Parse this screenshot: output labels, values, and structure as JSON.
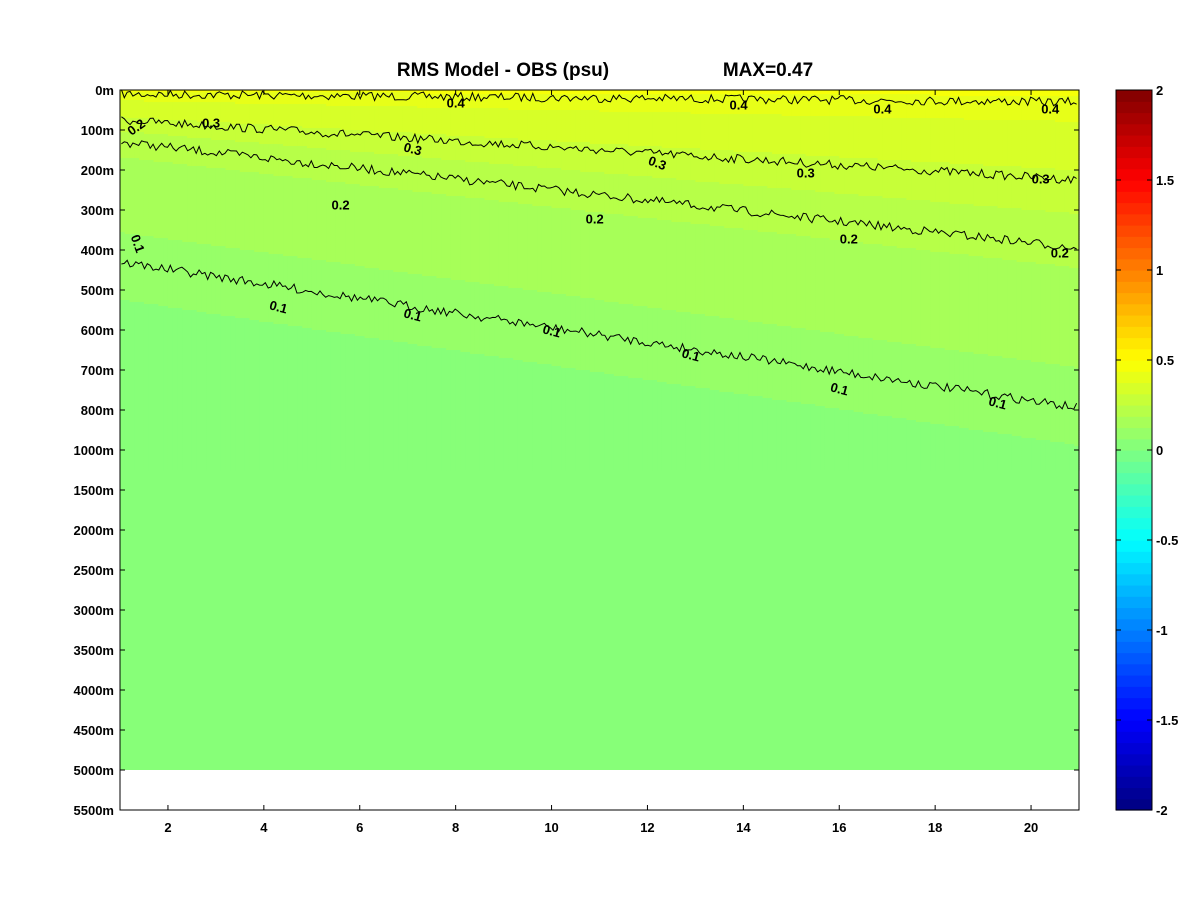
{
  "chart_data": {
    "type": "heatmap",
    "title": "RMS Model - OBS (psu)",
    "max_label": "MAX=0.47",
    "x_range": [
      1,
      21
    ],
    "x_ticks": [
      2,
      4,
      6,
      8,
      10,
      12,
      14,
      16,
      18,
      20
    ],
    "x_tick_labels": [
      "2",
      "4",
      "6",
      "8",
      "10",
      "12",
      "14",
      "16",
      "18",
      "20"
    ],
    "y_tick_labels": [
      "0m",
      "100m",
      "200m",
      "300m",
      "400m",
      "500m",
      "600m",
      "700m",
      "800m",
      "1000m",
      "1500m",
      "2000m",
      "2500m",
      "3000m",
      "3500m",
      "4000m",
      "4500m",
      "5000m",
      "5500m"
    ],
    "data_bottom_label": "5000m",
    "colorbar": {
      "range": [
        -2,
        2
      ],
      "ticks": [
        2,
        1.5,
        1,
        0.5,
        0,
        -0.5,
        -1,
        -1.5,
        -2
      ],
      "tick_labels": [
        "2",
        "1.5",
        "1",
        "0.5",
        "0",
        "-0.5",
        "-1",
        "-1.5",
        "-2"
      ],
      "colormap": "jet"
    },
    "contour_levels": [
      {
        "level": 0.4,
        "label": "0.4",
        "y_start": 0.1,
        "y_end": 0.3
      },
      {
        "level": 0.3,
        "label": "0.3",
        "y_start": 0.75,
        "y_end": 2.25
      },
      {
        "level": 0.2,
        "label": "0.2",
        "y_start": 1.3,
        "y_end": 3.95
      },
      {
        "level": 0.1,
        "label": "0.1",
        "y_start": 4.3,
        "y_end": 7.95
      }
    ],
    "contour_labels": [
      {
        "text": "0.4",
        "x": 8.0,
        "y": 0.35,
        "rot": 0
      },
      {
        "text": "0.4",
        "x": 13.9,
        "y": 0.4,
        "rot": 0
      },
      {
        "text": "0.4",
        "x": 16.9,
        "y": 0.5,
        "rot": 0
      },
      {
        "text": "0.4",
        "x": 20.4,
        "y": 0.5,
        "rot": 0
      },
      {
        "text": "0.3",
        "x": 2.9,
        "y": 0.85,
        "rot": 0
      },
      {
        "text": "0.3",
        "x": 7.1,
        "y": 1.5,
        "rot": 15
      },
      {
        "text": "0.3",
        "x": 12.2,
        "y": 1.85,
        "rot": 20
      },
      {
        "text": "0.3",
        "x": 15.3,
        "y": 2.1,
        "rot": 0
      },
      {
        "text": "0.3",
        "x": 20.2,
        "y": 2.25,
        "rot": 0
      },
      {
        "text": "0.2",
        "x": 1.35,
        "y": 0.95,
        "rot": -35
      },
      {
        "text": "0.2",
        "x": 5.6,
        "y": 2.9,
        "rot": 0
      },
      {
        "text": "0.2",
        "x": 10.9,
        "y": 3.25,
        "rot": 0
      },
      {
        "text": "0.2",
        "x": 16.2,
        "y": 3.75,
        "rot": 0
      },
      {
        "text": "0.2",
        "x": 20.6,
        "y": 4.1,
        "rot": 0
      },
      {
        "text": "0.1",
        "x": 1.35,
        "y": 3.85,
        "rot": 70
      },
      {
        "text": "0.1",
        "x": 4.3,
        "y": 5.45,
        "rot": 15
      },
      {
        "text": "0.1",
        "x": 7.1,
        "y": 5.65,
        "rot": 15
      },
      {
        "text": "0.1",
        "x": 10.0,
        "y": 6.05,
        "rot": 15
      },
      {
        "text": "0.1",
        "x": 12.9,
        "y": 6.65,
        "rot": 15
      },
      {
        "text": "0.1",
        "x": 16.0,
        "y": 7.5,
        "rot": 15
      },
      {
        "text": "0.1",
        "x": 19.3,
        "y": 7.85,
        "rot": 15
      }
    ]
  }
}
